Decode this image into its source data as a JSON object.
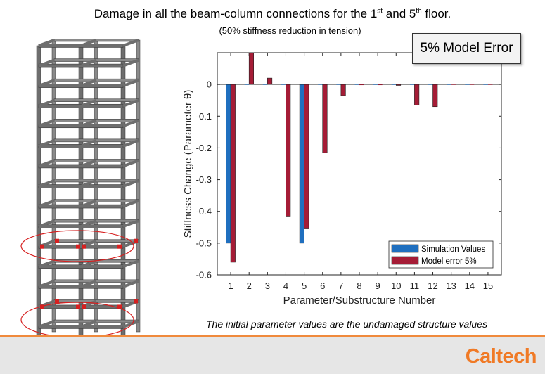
{
  "slide": {
    "title_part1": "Damage in all the beam-column connections for the 1",
    "title_sup1": "st",
    "title_part2": " and 5",
    "title_sup2": "th",
    "title_part3": " floor.",
    "subtitle": "(50% stiffness reduction in tension)",
    "error_box": "5% Model Error",
    "footnote": "The initial parameter values are the undamaged structure values",
    "logo": "Caltech"
  },
  "colors": {
    "simulation": "#1f6fbf",
    "model_error": "#a51c36",
    "accent": "#f08a3c",
    "logo": "#f07a26",
    "highlight_ellipse": "#d62020",
    "structure": "#6e6e6e"
  },
  "chart_data": {
    "type": "bar",
    "xlabel": "Parameter/Substructure Number",
    "ylabel": "Stiffness Change (Parameter θ)",
    "ylim": [
      -0.6,
      0.1
    ],
    "yticks": [
      0,
      -0.1,
      -0.2,
      -0.3,
      -0.4,
      -0.5,
      -0.6
    ],
    "ytick_labels": [
      "0",
      "-0.1",
      "-0.2",
      "-0.3",
      "-0.4",
      "-0.5",
      "-0.6"
    ],
    "categories": [
      "1",
      "2",
      "3",
      "4",
      "5",
      "6",
      "7",
      "8",
      "9",
      "10",
      "11",
      "12",
      "13",
      "14",
      "15"
    ],
    "series": [
      {
        "name": "Simulation Values",
        "color": "#1f6fbf",
        "values": [
          -0.5,
          0,
          0,
          0,
          -0.5,
          0,
          0,
          0,
          0,
          0,
          0,
          0,
          0,
          0,
          0
        ]
      },
      {
        "name": "Model error 5%",
        "color": "#a51c36",
        "values": [
          -0.56,
          0.1,
          0.02,
          -0.415,
          -0.455,
          -0.215,
          -0.035,
          -0.002,
          -0.002,
          -0.003,
          -0.065,
          -0.07,
          -0.001,
          -0.001,
          -0.001
        ]
      }
    ],
    "legend_position": "bottom-right",
    "grid": false
  }
}
